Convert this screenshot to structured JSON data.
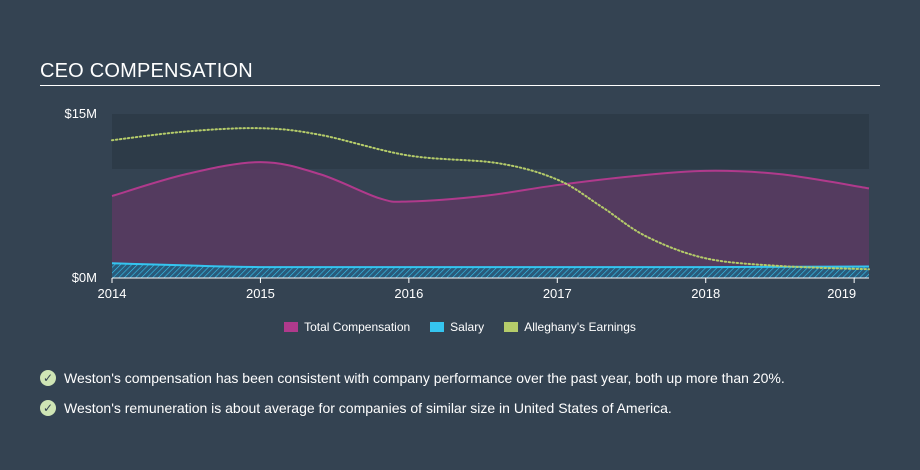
{
  "title": "CEO COMPENSATION",
  "colors": {
    "total_compensation": "#b03a8c",
    "salary": "#35c5f0",
    "earnings": "#b5cc6a",
    "background": "#344352",
    "check": "#cfe5b5"
  },
  "chart_data": {
    "type": "area",
    "ylabel_ticks": [
      "$15M",
      "$0M"
    ],
    "ylim": [
      0,
      15
    ],
    "x_ticks": [
      "2014",
      "2015",
      "2016",
      "2017",
      "2018",
      "2019"
    ],
    "xlim": [
      2014.0,
      2019.1
    ],
    "series": [
      {
        "name": "Total Compensation",
        "style": "area",
        "x": [
          2014.0,
          2014.5,
          2015.0,
          2015.4,
          2015.8,
          2016.0,
          2016.5,
          2017.0,
          2017.5,
          2018.0,
          2018.5,
          2019.1
        ],
        "values": [
          7.5,
          9.5,
          10.6,
          9.5,
          7.3,
          7.0,
          7.5,
          8.5,
          9.3,
          9.8,
          9.5,
          8.2
        ]
      },
      {
        "name": "Salary",
        "style": "area",
        "x": [
          2014.0,
          2014.5,
          2015.0,
          2016.0,
          2017.0,
          2018.0,
          2019.1
        ],
        "values": [
          1.35,
          1.15,
          1.0,
          1.0,
          1.0,
          1.0,
          1.05
        ]
      },
      {
        "name": "Alleghany's Earnings",
        "style": "dotted-line",
        "x": [
          2014.0,
          2014.5,
          2015.0,
          2015.4,
          2016.0,
          2016.6,
          2017.0,
          2017.3,
          2017.6,
          2018.0,
          2018.5,
          2019.1
        ],
        "values": [
          12.6,
          13.4,
          13.7,
          13.1,
          11.2,
          10.5,
          9.0,
          6.5,
          3.8,
          1.8,
          1.1,
          0.8
        ]
      }
    ]
  },
  "legend": [
    {
      "label": "Total Compensation",
      "color": "#b03a8c"
    },
    {
      "label": "Salary",
      "color": "#35c5f0"
    },
    {
      "label": "Alleghany's Earnings",
      "color": "#b5cc6a"
    }
  ],
  "notes": [
    {
      "text": "Weston's compensation has been consistent with company performance over the past year, both up more than 20%."
    },
    {
      "text": "Weston's remuneration is about average for companies of similar size in United States of America."
    }
  ],
  "check_glyph": "✓"
}
